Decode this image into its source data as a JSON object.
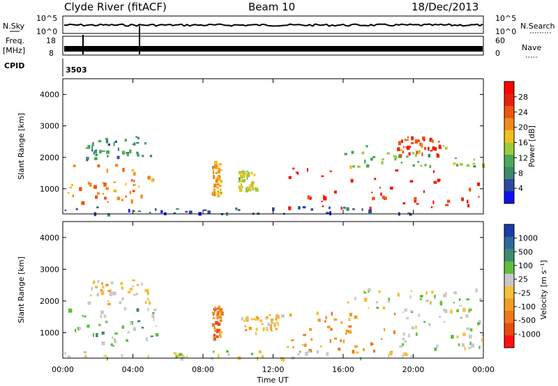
{
  "header": {
    "title": "Clyde River (fitACF)",
    "beam": "Beam 10",
    "date": "18/Dec/2013"
  },
  "top_panels": {
    "nsky_label": "N.Sky",
    "nsky_ticks": [
      "10^5",
      "10^0"
    ],
    "nsearch_label": "N.Search",
    "nsearch_ticks": [
      "10^5",
      "10^0"
    ],
    "freq_label_1": "Freq.",
    "freq_label_2": "[MHz]",
    "freq_ticks": [
      "18",
      "8"
    ],
    "nave_label": "Nave",
    "nave_ticks": [
      "60",
      "0"
    ],
    "cpid_label": "CPID",
    "cpid_value": "3503"
  },
  "colors": {
    "power_scale": [
      "#1010ee",
      "#2e4aa0",
      "#3d8a6a",
      "#4caa5a",
      "#9ccc3c",
      "#f0c020",
      "#f28a1a",
      "#ee5510",
      "#e82010",
      "#ff0000"
    ],
    "velocity_scale": [
      "#1a3ca8",
      "#2c6a9a",
      "#3f8a70",
      "#5cbf3c",
      "#c8c8c8",
      "#f3c13a",
      "#f0a020",
      "#f07818",
      "#e84a10",
      "#ff1010"
    ]
  },
  "chart_data": [
    {
      "type": "heatmap",
      "name": "power",
      "ylabel": "Slant Range [km]",
      "yticks": [
        "4000",
        "3000",
        "2000",
        "1000"
      ],
      "ylim": [
        200,
        4500
      ],
      "xlim": [
        0,
        24
      ],
      "xticks": [
        "00:00",
        "04:00",
        "08:00",
        "12:00",
        "16:00",
        "20:00",
        "00:00"
      ],
      "xlabel": "Time UT",
      "colorbar_label": "Power [dB]",
      "colorbar_ticks": [
        "28",
        "24",
        "20",
        "16",
        "12",
        "8",
        "4"
      ],
      "colorbar_range": [
        0,
        30
      ],
      "clusters": [
        {
          "t0": 0.2,
          "t1": 5.3,
          "r0": 600,
          "r1": 1800,
          "v": 20
        },
        {
          "t0": 1.3,
          "t1": 5.0,
          "r0": 2000,
          "r1": 2700,
          "v": 8
        },
        {
          "t0": 8.5,
          "t1": 9.0,
          "r0": 800,
          "r1": 1900,
          "v": 18
        },
        {
          "t0": 10.0,
          "t1": 11.0,
          "r0": 1000,
          "r1": 1600,
          "v": 14
        },
        {
          "t0": 12.7,
          "t1": 24.0,
          "r0": 400,
          "r1": 1700,
          "v": 26
        },
        {
          "t0": 16.0,
          "t1": 24.0,
          "r0": 1700,
          "r1": 2400,
          "v": 12
        },
        {
          "t0": 19.0,
          "t1": 21.5,
          "r0": 2100,
          "r1": 2700,
          "v": 24
        },
        {
          "t0": 0.0,
          "t1": 20.0,
          "r0": 220,
          "r1": 450,
          "v": 6
        }
      ]
    },
    {
      "type": "heatmap",
      "name": "velocity",
      "ylabel": "Slant Range [km]",
      "yticks": [
        "4000",
        "3000",
        "2000",
        "1000"
      ],
      "ylim": [
        200,
        4500
      ],
      "xlim": [
        0,
        24
      ],
      "xticks": [
        "00:00",
        "04:00",
        "08:00",
        "12:00",
        "16:00",
        "20:00",
        "00:00"
      ],
      "xlabel": "Time UT",
      "colorbar_label": "Velocity [m s⁻¹]",
      "colorbar_ticks": [
        "1000",
        "500",
        "100",
        "25",
        "-25",
        "-100",
        "-500",
        "-1000"
      ],
      "colorbar_range": [
        -1250,
        1250
      ],
      "clusters": [
        {
          "t0": 0.2,
          "t1": 5.3,
          "r0": 600,
          "r1": 1800,
          "v": 300
        },
        {
          "t0": 1.3,
          "t1": 5.0,
          "r0": 1900,
          "r1": 2700,
          "v": -60
        },
        {
          "t0": 8.5,
          "t1": 9.0,
          "r0": 800,
          "r1": 1900,
          "v": -600
        },
        {
          "t0": 10.0,
          "t1": 12.5,
          "r0": 1000,
          "r1": 1600,
          "v": -180
        },
        {
          "t0": 12.7,
          "t1": 19.0,
          "r0": 400,
          "r1": 1700,
          "v": -450
        },
        {
          "t0": 19.0,
          "t1": 24.0,
          "r0": 500,
          "r1": 1800,
          "v": 200
        },
        {
          "t0": 16.0,
          "t1": 24.0,
          "r0": 1700,
          "r1": 2400,
          "v": 150
        },
        {
          "t0": 0.0,
          "t1": 20.0,
          "r0": 220,
          "r1": 450,
          "v": 40
        }
      ]
    }
  ]
}
